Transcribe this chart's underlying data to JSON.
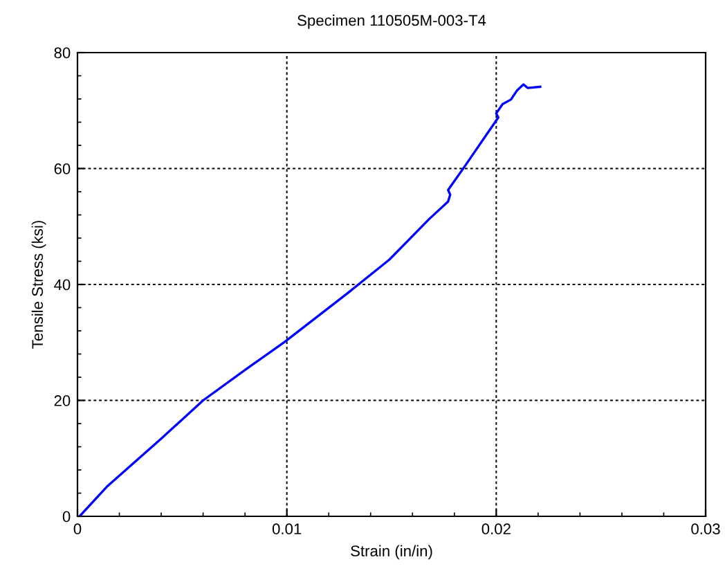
{
  "chart_data": {
    "type": "line",
    "title": "Specimen 110505M-003-T4",
    "xlabel": "Strain (in/in)",
    "ylabel": "Tensile Stress (ksi)",
    "series": [
      {
        "color": "#0000ff",
        "x": [
          0.0001,
          0.0014,
          0.004,
          0.006,
          0.0081,
          0.0099,
          0.0129,
          0.0149,
          0.0168,
          0.0177,
          0.0178,
          0.0177,
          0.0185,
          0.02,
          0.0201,
          0.02,
          0.0203,
          0.0207,
          0.021,
          0.0213,
          0.0215,
          0.0221
        ],
        "values": [
          0,
          5.1,
          13.4,
          20,
          25.5,
          30.1,
          38.5,
          44.3,
          51.3,
          54.3,
          55.5,
          56.3,
          60.4,
          68.3,
          68.8,
          69.5,
          71.1,
          71.9,
          73.5,
          74.5,
          73.9,
          74.1
        ]
      }
    ],
    "xlim": [
      0,
      0.03
    ],
    "xticks": [
      0,
      0.01,
      0.02,
      0.03
    ],
    "ylim": [
      0,
      80
    ],
    "yticks": [
      0,
      20,
      40,
      60,
      80
    ],
    "grid": true,
    "line_style": "solid",
    "marker": "none"
  }
}
